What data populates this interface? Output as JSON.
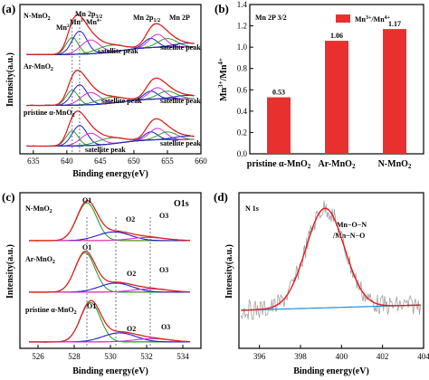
{
  "colors": {
    "red": "#e41a1c",
    "green": "#2ca02c",
    "blue": "#1f1fd0",
    "magenta": "#d62fd6",
    "orange": "#ff8c1a",
    "gray": "#a0a0a0",
    "envelope_red": "#e41a1c",
    "bg_blue": "#1f8fe0",
    "bar": "#e8312f"
  },
  "panels": {
    "a": {
      "label": "(a)",
      "corner": "Mn 2P",
      "xlabel": "Binding energy(eV)",
      "ylabel": "Intensity(a.u.)",
      "xticks": [
        "635",
        "640",
        "645",
        "650",
        "655",
        "660"
      ],
      "samples": [
        "N-MnO",
        "Ar-MnO",
        "pristine α-MnO"
      ],
      "sub": "2",
      "peak_labels": {
        "mn2p32": "Mn 2p",
        "mn2p32_sub": "3/2",
        "mn2p12": "Mn 2p",
        "mn2p12_sub": "1/2",
        "mn2": "Mn",
        "mn2_sup": "2+",
        "mn3": "Mn",
        "mn3_sup": "3+",
        "mn4": "Mn",
        "mn4_sup": "4+",
        "sat": "satellite peak"
      }
    },
    "b": {
      "label": "(b)",
      "inner_title": "Mn 2P 3/2",
      "ylabel_base": "Mn",
      "ylabel_sup1": "3+",
      "ylabel_mid": "/Mn",
      "ylabel_sup2": "4+",
      "legend_base": "Mn",
      "legend_sup1": "3+",
      "legend_mid": "/Mn",
      "legend_sup2": "4+",
      "yticks": [
        "0.0",
        "0.2",
        "0.4",
        "0.6",
        "0.8",
        "1.0",
        "1.2",
        "1.4"
      ]
    },
    "c": {
      "label": "(c)",
      "corner": "O1s",
      "xlabel": "Binding energy(eV)",
      "ylabel": "Intensity(a.u.)",
      "xticks": [
        "526",
        "528",
        "530",
        "532",
        "534"
      ],
      "samples": [
        "N-MnO",
        "Ar-MnO",
        "pristine α-MnO"
      ],
      "sub": "2",
      "o1": "O1",
      "o2": "O2",
      "o3": "O3"
    },
    "d": {
      "label": "(d)",
      "corner": "N 1s",
      "xlabel": "Binding energy(eV)",
      "ylabel": "Intensity(a.u.)",
      "xticks": [
        "396",
        "398",
        "400",
        "402",
        "404"
      ],
      "legend1": "Mn−O−N",
      "legend2": "/Mn−N−O"
    }
  },
  "chart_data": [
    {
      "type": "line",
      "panel": "a",
      "x_range": [
        633,
        660
      ],
      "series": [
        {
          "name": "N-MnO2",
          "peaks_eV": [
            640.8,
            641.9,
            643.5,
            646.5,
            652.5,
            653.5,
            655.0,
            658.0
          ]
        },
        {
          "name": "Ar-MnO2",
          "peaks_eV": [
            640.8,
            641.9,
            643.5,
            646.5,
            652.5,
            653.5,
            655.0,
            658.0
          ]
        },
        {
          "name": "pristine α-MnO2",
          "peaks_eV": [
            640.8,
            641.9,
            643.5,
            646.5,
            652.5,
            653.5,
            655.0,
            658.0
          ]
        }
      ]
    },
    {
      "type": "bar",
      "panel": "b",
      "categories": [
        "pristine α-MnO2",
        "Ar-MnO2",
        "N-MnO2"
      ],
      "values": [
        0.53,
        1.06,
        1.17
      ],
      "ylim": [
        0,
        1.4
      ]
    },
    {
      "type": "line",
      "panel": "c",
      "x_range": [
        525,
        535
      ],
      "series": [
        {
          "name": "N-MnO2",
          "O1_eV": 528.7,
          "O2_eV": 530.2,
          "O3_eV": 532.1
        },
        {
          "name": "Ar-MnO2",
          "O1_eV": 528.6,
          "O2_eV": 530.3,
          "O3_eV": 532.2
        },
        {
          "name": "pristine α-MnO2",
          "O1_eV": 528.9,
          "O2_eV": 530.5,
          "O3_eV": 532.3
        }
      ]
    },
    {
      "type": "line",
      "panel": "d",
      "x_range": [
        395,
        404
      ],
      "series": [
        {
          "peak_eV": 399.2,
          "fwhm_eV": 2.2
        }
      ]
    }
  ]
}
